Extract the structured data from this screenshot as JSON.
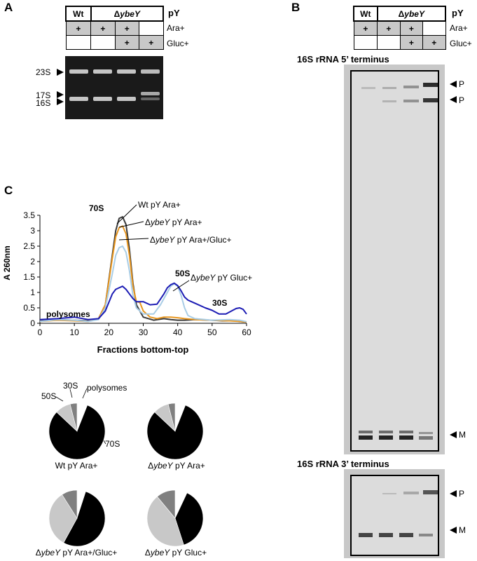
{
  "panels": {
    "a": "A",
    "b": "B",
    "c": "C"
  },
  "table_a": {
    "wt": "Wt",
    "delta": "Δ",
    "ybey": "ybeY",
    "py": "pY",
    "ara": "Ara+",
    "gluc": "Gluc+",
    "plus": "+"
  },
  "table_b": {
    "wt": "Wt",
    "delta": "Δ",
    "ybey": "ybeY",
    "py": "pY",
    "ara": "Ara+",
    "gluc": "Gluc+",
    "plus": "+"
  },
  "gel_a": {
    "label_23s": "23S",
    "label_17s": "17S",
    "label_16s": "16S"
  },
  "gel_b": {
    "title_5": "16S rRNA 5’ terminus",
    "title_3": "16S rRNA 3’ terminus",
    "p": "P",
    "m": "M"
  },
  "chart_data": {
    "type": "line",
    "xlabel": "Fractions bottom-top",
    "ylabel": "A 260nm",
    "xlim": [
      0,
      60
    ],
    "ylim": [
      0,
      3.5
    ],
    "xticks": [
      0,
      10,
      20,
      30,
      40,
      50,
      60
    ],
    "yticks": [
      0,
      0.5,
      1,
      1.5,
      2,
      2.5,
      3,
      3.5
    ],
    "peak_labels": {
      "s70": "70S",
      "s50": "50S",
      "s30": "30S",
      "poly": "polysomes"
    },
    "series": [
      {
        "name": "Wt pY Ara+",
        "color": "#3a3a3a",
        "x": [
          0,
          5,
          10,
          14,
          17,
          19,
          21,
          22,
          23,
          24,
          25,
          26,
          27,
          28,
          30,
          33,
          36,
          38,
          40,
          42,
          45,
          50,
          53,
          55,
          57,
          58,
          60
        ],
        "y": [
          0.08,
          0.12,
          0.1,
          0.08,
          0.15,
          0.6,
          2.2,
          3.0,
          3.4,
          3.45,
          3.2,
          2.4,
          1.3,
          0.6,
          0.2,
          0.1,
          0.15,
          0.12,
          0.1,
          0.1,
          0.12,
          0.1,
          0.08,
          0.08,
          0.08,
          0.06,
          0.04
        ]
      },
      {
        "name": "ΔybeY pY Ara+",
        "color": "#e8961e",
        "x": [
          0,
          5,
          10,
          14,
          17,
          19,
          21,
          22,
          23,
          24,
          25,
          26,
          27,
          28,
          29,
          30,
          32,
          34,
          36,
          38,
          40,
          42,
          45,
          50,
          55,
          58,
          60
        ],
        "y": [
          0.06,
          0.1,
          0.08,
          0.06,
          0.15,
          0.6,
          2.1,
          2.8,
          3.1,
          3.15,
          2.9,
          2.2,
          1.2,
          0.7,
          0.68,
          0.4,
          0.2,
          0.15,
          0.2,
          0.2,
          0.18,
          0.15,
          0.12,
          0.1,
          0.08,
          0.06,
          0.04
        ]
      },
      {
        "name": "ΔybeY pY Ara+/Gluc+",
        "color": "#a9cde6",
        "x": [
          0,
          5,
          10,
          14,
          17,
          19,
          21,
          22,
          23,
          24,
          25,
          26,
          27,
          28,
          30,
          33,
          35,
          37,
          38,
          39,
          40,
          41,
          42,
          43,
          45,
          48,
          50,
          55,
          58,
          60
        ],
        "y": [
          0.06,
          0.12,
          0.1,
          0.06,
          0.12,
          0.5,
          1.6,
          2.2,
          2.45,
          2.5,
          2.3,
          1.7,
          0.9,
          0.5,
          0.3,
          0.3,
          0.6,
          1.0,
          1.2,
          1.28,
          1.2,
          0.9,
          0.5,
          0.25,
          0.15,
          0.12,
          0.1,
          0.12,
          0.1,
          0.05
        ]
      },
      {
        "name": "ΔybeY pY Gluc+",
        "color": "#1c1cb4",
        "x": [
          0,
          5,
          10,
          14,
          17,
          19,
          21,
          22,
          23,
          24,
          25,
          26,
          27,
          28,
          30,
          32,
          34,
          36,
          37,
          38,
          39,
          40,
          41,
          42,
          43,
          44,
          46,
          48,
          50,
          52,
          54,
          56,
          57,
          58,
          59,
          60
        ],
        "y": [
          0.12,
          0.15,
          0.2,
          0.12,
          0.15,
          0.4,
          0.95,
          1.1,
          1.15,
          1.2,
          1.1,
          0.95,
          0.8,
          0.7,
          0.7,
          0.6,
          0.62,
          0.95,
          1.15,
          1.25,
          1.3,
          1.22,
          1.05,
          0.85,
          0.75,
          0.7,
          0.6,
          0.5,
          0.42,
          0.3,
          0.3,
          0.42,
          0.48,
          0.5,
          0.45,
          0.3
        ]
      }
    ]
  },
  "legend_labels": {
    "wt": "Wt pY Ara+",
    "delta": "Δ",
    "ybey": "ybeY",
    "ara": " pY Ara+",
    "aragluc": " pY Ara+/Gluc+",
    "gluc": " pY Gluc+"
  },
  "pie_labels": {
    "s50": "50S",
    "s30": "30S",
    "poly": "polysomes",
    "s70": "70S"
  },
  "pies": [
    {
      "caption_pre": "",
      "caption_ital": "",
      "caption_post": "Wt pY Ara+",
      "slices": [
        {
          "name": "polysomes",
          "value": 6,
          "color": "#ffffff"
        },
        {
          "name": "70S",
          "value": 81,
          "color": "#000000"
        },
        {
          "name": "50S",
          "value": 9,
          "color": "#c8c8c8"
        },
        {
          "name": "30S",
          "value": 4,
          "color": "#808080"
        }
      ]
    },
    {
      "caption_pre": "Δ",
      "caption_ital": "ybeY",
      "caption_post": " pY Ara+",
      "slices": [
        {
          "name": "polysomes",
          "value": 6,
          "color": "#ffffff"
        },
        {
          "name": "70S",
          "value": 81,
          "color": "#000000"
        },
        {
          "name": "50S",
          "value": 9,
          "color": "#c8c8c8"
        },
        {
          "name": "30S",
          "value": 4,
          "color": "#808080"
        }
      ]
    },
    {
      "caption_pre": "Δ",
      "caption_ital": "ybeY",
      "caption_post": " pY Ara+/Gluc+",
      "slices": [
        {
          "name": "polysomes",
          "value": 5,
          "color": "#ffffff"
        },
        {
          "name": "70S",
          "value": 53,
          "color": "#000000"
        },
        {
          "name": "50S",
          "value": 33,
          "color": "#c8c8c8"
        },
        {
          "name": "30S",
          "value": 9,
          "color": "#808080"
        }
      ]
    },
    {
      "caption_pre": "Δ",
      "caption_ital": "ybeY",
      "caption_post": " pY Gluc+",
      "slices": [
        {
          "name": "polysomes",
          "value": 7,
          "color": "#ffffff"
        },
        {
          "name": "70S",
          "value": 38,
          "color": "#000000"
        },
        {
          "name": "50S",
          "value": 44,
          "color": "#c8c8c8"
        },
        {
          "name": "30S",
          "value": 11,
          "color": "#808080"
        }
      ]
    }
  ]
}
